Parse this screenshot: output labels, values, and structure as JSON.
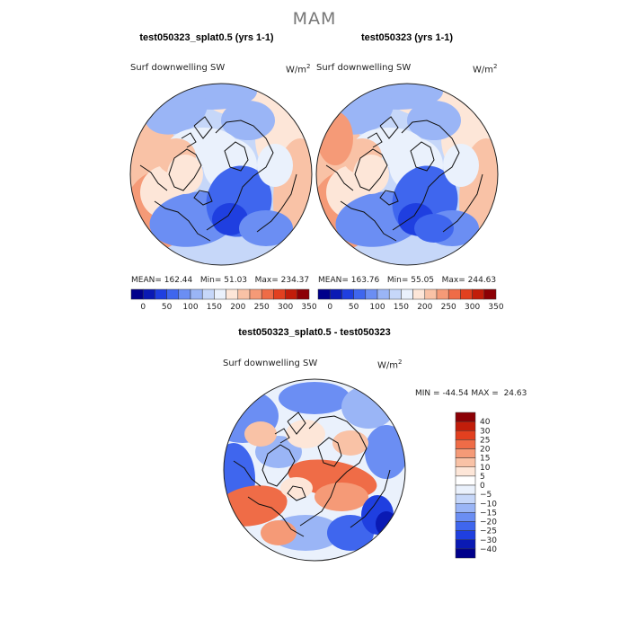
{
  "suptitle": "MAM",
  "panels": [
    {
      "title": "test050323_splat0.5 (yrs 1-1)",
      "var_label": "Surf downwelling SW",
      "units": "W/m",
      "units_sup": "2",
      "mean_label": "MEAN=",
      "mean": "162.44",
      "min_label": "Min=",
      "min": "51.03",
      "max_label": "Max=",
      "max": "234.37"
    },
    {
      "title": "test050323 (yrs 1-1)",
      "var_label": "Surf downwelling SW",
      "units": "W/m",
      "units_sup": "2",
      "mean_label": "MEAN=",
      "mean": "163.76",
      "min_label": "Min=",
      "min": "55.05",
      "max_label": "Max=",
      "max": "244.63"
    }
  ],
  "diff": {
    "title": "test050323_splat0.5 - test050323",
    "var_label": "Surf downwelling SW",
    "units": "W/m",
    "units_sup": "2",
    "min_label": "MIN =",
    "min": "-44.54",
    "max_label": "MAX =",
    "max": "24.63"
  },
  "chart_data": [
    {
      "type": "heatmap",
      "projection": "north-polar-stereographic",
      "title": "test050323_splat0.5 (yrs 1-1)",
      "variable": "Surf downwelling SW",
      "units": "W/m2",
      "mean": 162.44,
      "min": 51.03,
      "max": 234.37,
      "colorbar_ticks": [
        "0",
        "50",
        "100",
        "150",
        "200",
        "250",
        "300",
        "350"
      ],
      "colorbar_colors": [
        "#00008b",
        "#0a1ab4",
        "#1f3fe0",
        "#3f66ee",
        "#6b8ef3",
        "#9ab5f6",
        "#c6d7f9",
        "#eaf1fc",
        "#fde6d8",
        "#f9c2a6",
        "#f59a77",
        "#ef6c47",
        "#e2401f",
        "#c21d0a",
        "#8c0005"
      ]
    },
    {
      "type": "heatmap",
      "projection": "north-polar-stereographic",
      "title": "test050323 (yrs 1-1)",
      "variable": "Surf downwelling SW",
      "units": "W/m2",
      "mean": 163.76,
      "min": 55.05,
      "max": 244.63,
      "colorbar_ticks": [
        "0",
        "50",
        "100",
        "150",
        "200",
        "250",
        "300",
        "350"
      ],
      "colorbar_colors": [
        "#00008b",
        "#0a1ab4",
        "#1f3fe0",
        "#3f66ee",
        "#6b8ef3",
        "#9ab5f6",
        "#c6d7f9",
        "#eaf1fc",
        "#fde6d8",
        "#f9c2a6",
        "#f59a77",
        "#ef6c47",
        "#e2401f",
        "#c21d0a",
        "#8c0005"
      ]
    },
    {
      "type": "heatmap",
      "projection": "north-polar-stereographic",
      "title": "test050323_splat0.5 - test050323",
      "variable": "Surf downwelling SW",
      "units": "W/m2",
      "min": -44.54,
      "max": 24.63,
      "colorbar_ticks": [
        "40",
        "30",
        "25",
        "20",
        "15",
        "10",
        "5",
        "0",
        "−5",
        "−10",
        "−15",
        "−20",
        "−25",
        "−30",
        "−40"
      ],
      "colorbar_colors": [
        "#8c0005",
        "#c21d0a",
        "#e2401f",
        "#ef6c47",
        "#f59a77",
        "#f9c2a6",
        "#fde6d8",
        "#ffffff",
        "#eaf1fc",
        "#c6d7f9",
        "#9ab5f6",
        "#6b8ef3",
        "#3f66ee",
        "#1f3fe0",
        "#0a1ab4",
        "#00008b"
      ]
    }
  ]
}
